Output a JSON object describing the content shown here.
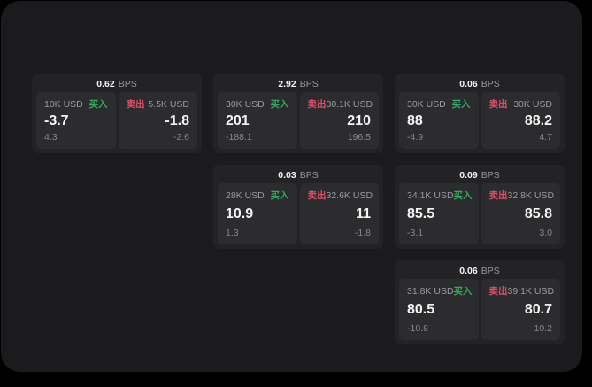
{
  "colors": {
    "page_bg": "#000000",
    "panel_bg": "#1b1b1d",
    "card_bg": "#232326",
    "tile_bg": "#2c2c2f",
    "text_primary": "#f4f4f5",
    "text_muted": "#97979c",
    "buy_green": "#35a863",
    "sell_red": "#d9506a"
  },
  "labels": {
    "bps_unit": "BPS",
    "buy": "买入",
    "sell": "卖出"
  },
  "cards": [
    {
      "bps": "0.62",
      "buy": {
        "size": "10K USD",
        "price": "-3.7",
        "delta": "4.3"
      },
      "sell": {
        "size": "5.5K USD",
        "price": "-1.8",
        "delta": "-2.6"
      }
    },
    {
      "bps": "2.92",
      "buy": {
        "size": "30K USD",
        "price": "201",
        "delta": "-188.1"
      },
      "sell": {
        "size": "30.1K USD",
        "price": "210",
        "delta": "196.5"
      }
    },
    {
      "bps": "0.06",
      "buy": {
        "size": "30K USD",
        "price": "88",
        "delta": "-4.9"
      },
      "sell": {
        "size": "30K USD",
        "price": "88.2",
        "delta": "4.7"
      }
    },
    {
      "bps": "0.03",
      "buy": {
        "size": "28K USD",
        "price": "10.9",
        "delta": "1.3"
      },
      "sell": {
        "size": "32.6K USD",
        "price": "11",
        "delta": "-1.8"
      }
    },
    {
      "bps": "0.09",
      "buy": {
        "size": "34.1K USD",
        "price": "85.5",
        "delta": "-3.1"
      },
      "sell": {
        "size": "32.8K USD",
        "price": "85.8",
        "delta": "3.0"
      }
    },
    {
      "bps": "0.06",
      "buy": {
        "size": "31.8K USD",
        "price": "80.5",
        "delta": "-10.8"
      },
      "sell": {
        "size": "39.1K USD",
        "price": "80.7",
        "delta": "10.2"
      }
    }
  ]
}
